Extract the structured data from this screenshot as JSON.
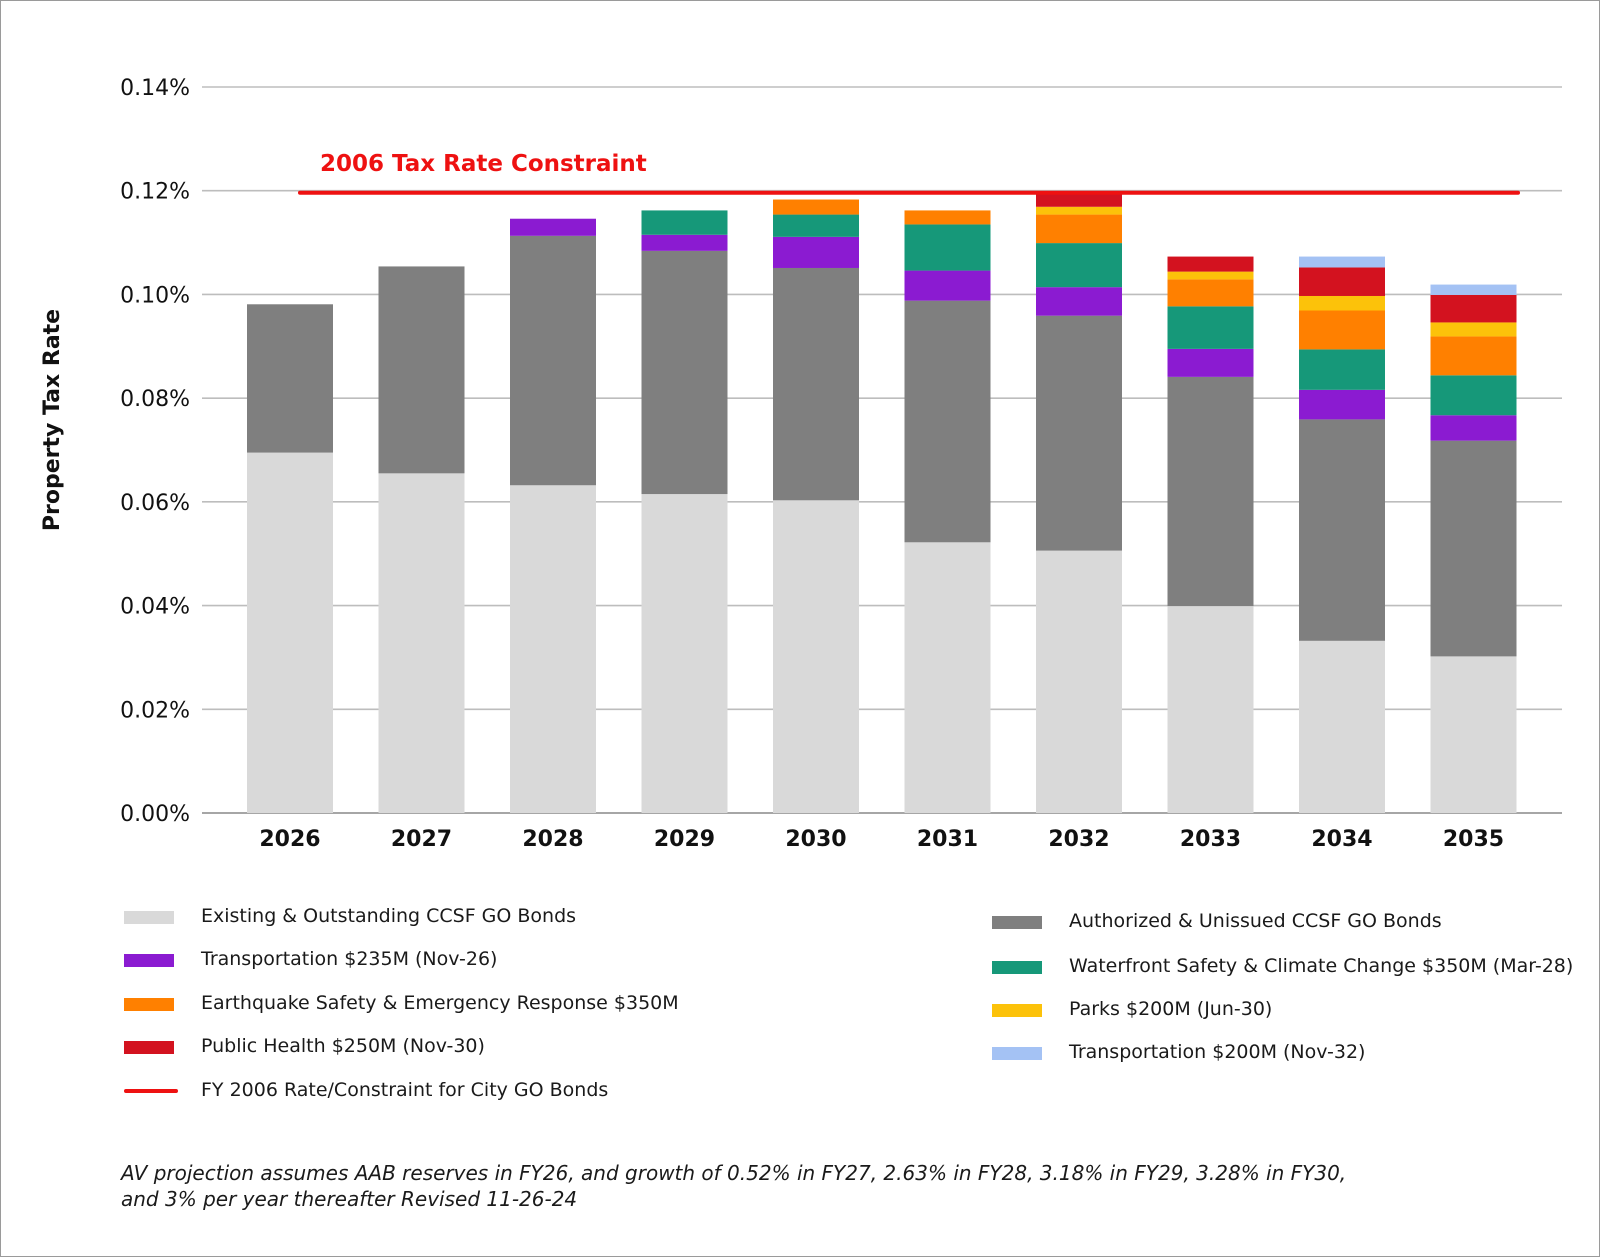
{
  "chart_data": {
    "type": "bar",
    "stacked": true,
    "ylabel": "Property Tax Rate",
    "xlabel": "",
    "ylim": [
      0,
      0.14
    ],
    "yticks": [
      0,
      0.02,
      0.04,
      0.06,
      0.08,
      0.1,
      0.12,
      0.14
    ],
    "ytick_labels": [
      "0.00%",
      "0.02%",
      "0.04%",
      "0.06%",
      "0.08%",
      "0.10%",
      "0.12%",
      "0.14%"
    ],
    "grid": true,
    "categories": [
      "2026",
      "2027",
      "2028",
      "2029",
      "2030",
      "2031",
      "2032",
      "2033",
      "2034",
      "2035"
    ],
    "series": [
      {
        "name": "Existing & Outstanding CCSF GO Bonds",
        "color": "#d9d9d9",
        "values": [
          0.0695,
          0.0655,
          0.0632,
          0.0615,
          0.0603,
          0.0522,
          0.0506,
          0.0399,
          0.0332,
          0.0302
        ]
      },
      {
        "name": "Authorized & Unissued CCSF GO Bonds",
        "color": "#7f7f7f",
        "values": [
          0.0286,
          0.0399,
          0.0481,
          0.0469,
          0.0448,
          0.0466,
          0.0453,
          0.0442,
          0.0427,
          0.0416
        ]
      },
      {
        "name": "Transportation $235M (Nov-26)",
        "color": "#8b1bd1",
        "values": [
          0,
          0,
          0.0033,
          0.0031,
          0.006,
          0.0058,
          0.0055,
          0.0054,
          0.0057,
          0.0049
        ]
      },
      {
        "name": "Waterfront Safety & Climate Change $350M (Mar-28)",
        "color": "#169879",
        "values": [
          0,
          0,
          0,
          0.0047,
          0.0043,
          0.0089,
          0.0085,
          0.0082,
          0.0078,
          0.0077
        ]
      },
      {
        "name": "Earthquake Safety & Emergency Response $350M",
        "color": "#ff8000",
        "values": [
          0,
          0,
          0,
          0,
          0.0029,
          0.0027,
          0.0055,
          0.0052,
          0.0075,
          0.0075
        ]
      },
      {
        "name": "Parks $200M (Jun-30)",
        "color": "#fcc20a",
        "values": [
          0,
          0,
          0,
          0,
          0,
          0,
          0.0015,
          0.0015,
          0.0028,
          0.0027
        ]
      },
      {
        "name": "Public Health $250M (Nov-30)",
        "color": "#d3121f",
        "values": [
          0,
          0,
          0,
          0,
          0,
          0,
          0.003,
          0.0029,
          0.0055,
          0.0053
        ]
      },
      {
        "name": "Transportation $200M (Nov-32)",
        "color": "#a4c2f4",
        "values": [
          0,
          0,
          0,
          0,
          0,
          0,
          0,
          0,
          0.0021,
          0.002
        ]
      }
    ],
    "reference_line": {
      "name": "FY 2006 Rate/Constraint for City GO Bonds",
      "value": 0.1196,
      "label": "2006 Tax Rate Constraint",
      "color": "#ee1111"
    }
  },
  "legend": {
    "left": [
      {
        "label": "Existing & Outstanding CCSF GO Bonds",
        "color": "#d9d9d9",
        "kind": "swatch"
      },
      {
        "label": "Transportation $235M (Nov-26)",
        "color": "#8b1bd1",
        "kind": "swatch"
      },
      {
        "label": "Earthquake Safety & Emergency Response $350M",
        "color": "#ff8000",
        "kind": "swatch"
      },
      {
        "label": "Public Health $250M (Nov-30)",
        "color": "#d3121f",
        "kind": "swatch"
      },
      {
        "label": "FY 2006 Rate/Constraint for City GO Bonds",
        "color": "#ee1111",
        "kind": "line"
      }
    ],
    "right": [
      {
        "label": "Authorized & Unissued CCSF GO Bonds",
        "color": "#7f7f7f",
        "kind": "swatch"
      },
      {
        "label": "Waterfront Safety & Climate Change $350M (Mar-28)",
        "color": "#169879",
        "kind": "swatch"
      },
      {
        "label": "Parks $200M (Jun-30)",
        "color": "#fcc20a",
        "kind": "swatch"
      },
      {
        "label": "Transportation $200M (Nov-32)",
        "color": "#a4c2f4",
        "kind": "swatch"
      }
    ]
  },
  "footnote": {
    "line1": "AV projection assumes AAB reserves in FY26, and growth of 0.52% in FY27, 2.63% in FY28, 3.18% in FY29, 3.28% in FY30,",
    "line2": "and 3% per year thereafter Revised 11-26-24"
  }
}
